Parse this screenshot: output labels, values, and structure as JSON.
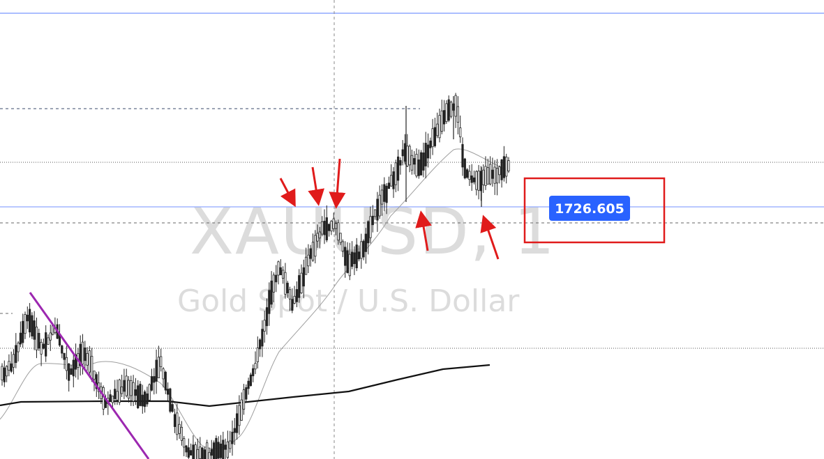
{
  "watermark": {
    "symbol": "XAUUSD, 1",
    "description": "Gold Spot / U.S. Dollar"
  },
  "price_label": {
    "value": "1726.605",
    "bg_color": "#2962ff",
    "box_color": "#e01b1b"
  },
  "colors": {
    "candle": "#222222",
    "ma_fast": "#9e9e9e",
    "ma_slow": "#111111",
    "trendline": "#9c27b0",
    "hline": "#8fa8ff",
    "arrow": "#e01b1b"
  },
  "chart_data": {
    "type": "candlestick",
    "symbol": "XAUUSD",
    "timeframe": "1",
    "current_price": 1726.605,
    "y_reference": {
      "value": 1726.605
    },
    "candle_closes_relative": [
      0.0,
      0.2,
      0.5,
      0.8,
      1.1,
      1.3,
      1.0,
      0.7,
      0.4,
      0.2,
      -0.1,
      -0.3,
      -0.6,
      -0.8,
      -0.9,
      -1.1,
      -1.3,
      -1.6,
      -1.7,
      -1.5,
      -1.3,
      -1.0,
      -0.9,
      -1.2,
      -1.4,
      -1.6,
      -1.8,
      -1.9,
      -2.1,
      -2.3,
      -2.0,
      -1.8,
      -1.6,
      -1.9,
      -2.2,
      -2.4,
      -2.6,
      -2.4,
      -2.1,
      -1.9,
      -1.7,
      -1.9,
      -2.2,
      -2.5,
      -2.8,
      -3.1,
      -3.3,
      -3.2,
      -3.4,
      -3.3,
      -3.1,
      -2.8,
      -2.4,
      -2.0,
      -1.6,
      -1.2,
      -0.8,
      -0.3,
      0.3,
      0.8,
      1.3,
      1.7,
      2.0,
      2.2,
      2.0,
      1.8,
      2.1,
      2.5,
      3.0,
      3.4,
      3.6,
      3.3,
      3.5,
      3.8,
      3.6,
      3.9,
      3.7,
      3.4,
      3.1,
      3.0,
      3.3,
      3.6,
      3.9,
      4.2,
      4.5,
      4.7,
      4.9,
      5.2,
      5.6,
      5.9,
      5.6,
      5.3,
      5.7,
      6.0,
      6.3,
      6.5,
      6.7,
      6.9,
      7.1,
      7.0,
      6.6,
      6.0,
      5.6,
      5.3,
      5.5,
      5.2,
      5.4,
      5.6,
      5.4,
      5.5
    ]
  }
}
